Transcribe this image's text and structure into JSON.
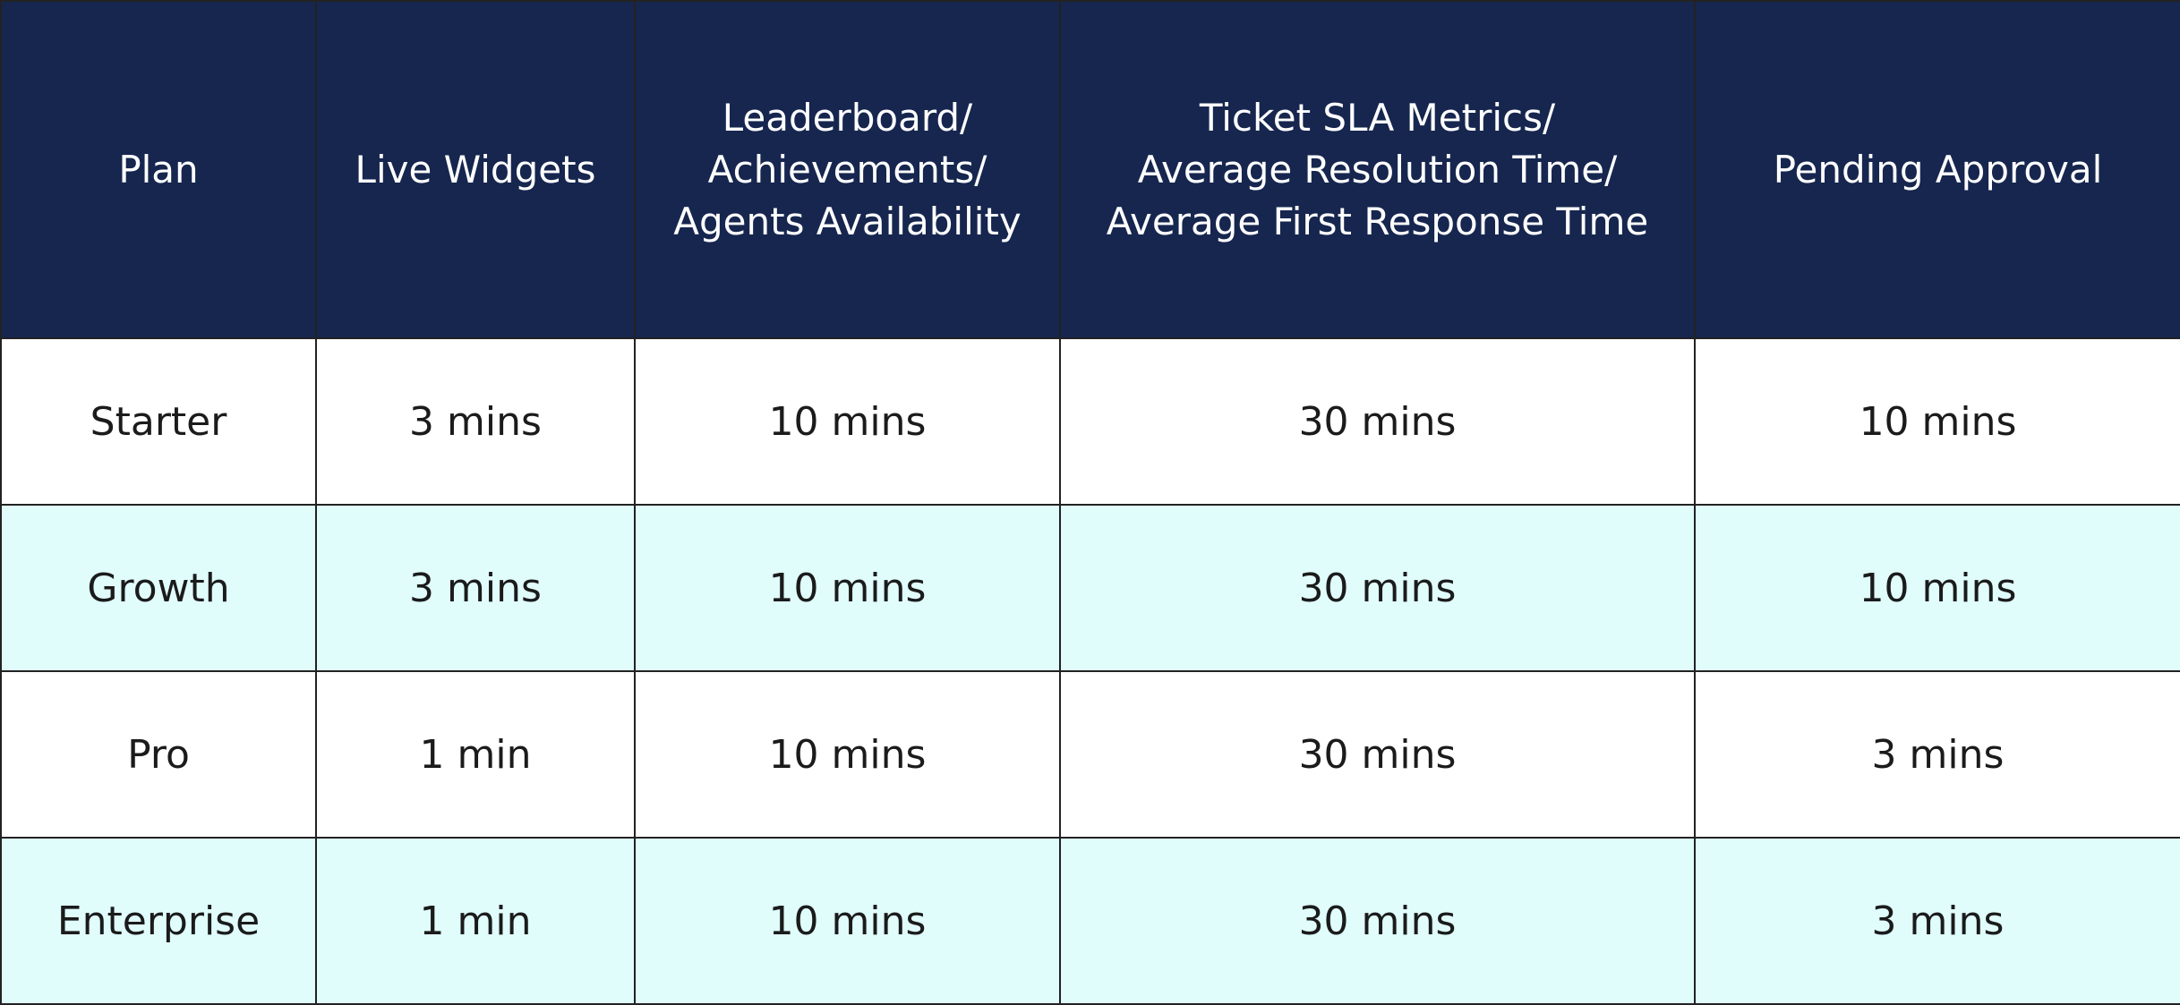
{
  "table": {
    "header": [
      [
        "Plan"
      ],
      [
        "Live Widgets"
      ],
      [
        "Leaderboard/",
        "Achievements/",
        "Agents Availability"
      ],
      [
        "Ticket SLA Metrics/",
        "Average Resolution Time/",
        "Average First Response Time"
      ],
      [
        "Pending Approval"
      ]
    ],
    "rows": [
      [
        "Starter",
        "3 mins",
        "10 mins",
        "30 mins",
        "10 mins"
      ],
      [
        "Growth",
        "3 mins",
        "10 mins",
        "30 mins",
        "10 mins"
      ],
      [
        "Pro",
        "1 min",
        "10 mins",
        "30 mins",
        "3 mins"
      ],
      [
        "Enterprise",
        "1 min",
        "10 mins",
        "30 mins",
        "3 mins"
      ]
    ]
  }
}
